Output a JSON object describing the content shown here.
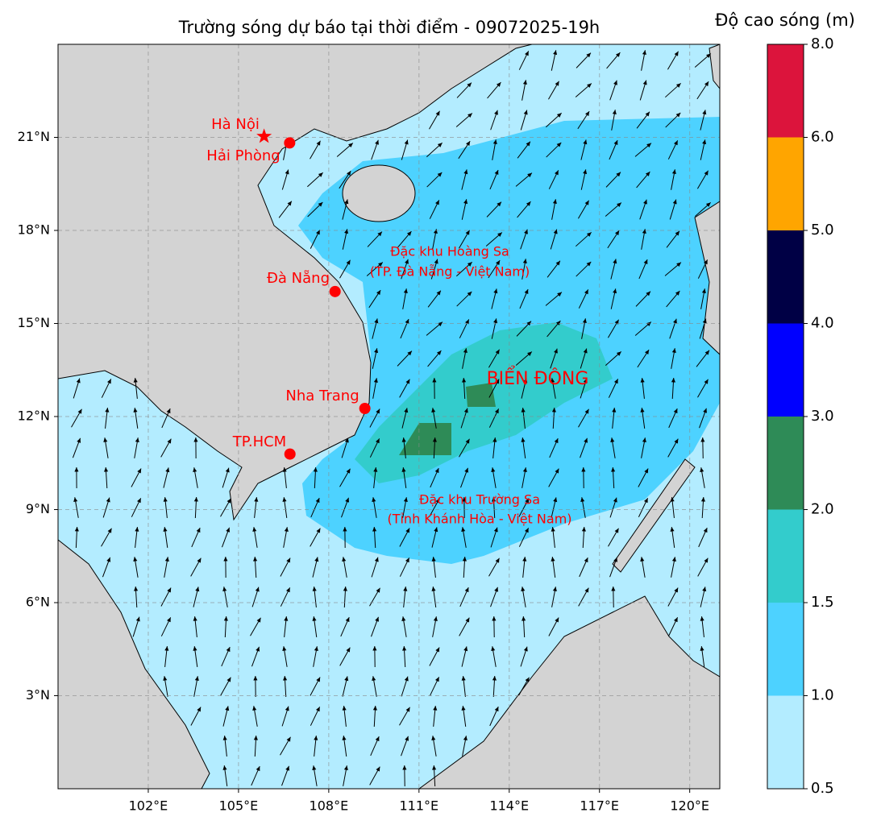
{
  "title": "Trường sóng dự báo tại thời điểm - 09072025-19h",
  "map": {
    "xlim": [
      99,
      121
    ],
    "ylim": [
      0,
      24
    ],
    "xticks": [
      {
        "value": 102,
        "label": "102°E"
      },
      {
        "value": 105,
        "label": "105°E"
      },
      {
        "value": 108,
        "label": "108°E"
      },
      {
        "value": 111,
        "label": "111°E"
      },
      {
        "value": 114,
        "label": "114°E"
      },
      {
        "value": 117,
        "label": "117°E"
      },
      {
        "value": 120,
        "label": "120°E"
      }
    ],
    "yticks": [
      {
        "value": 3,
        "label": "3°N"
      },
      {
        "value": 6,
        "label": "6°N"
      },
      {
        "value": 9,
        "label": "9°N"
      },
      {
        "value": 12,
        "label": "12°N"
      },
      {
        "value": 15,
        "label": "15°N"
      },
      {
        "value": 18,
        "label": "18°N"
      },
      {
        "value": 21,
        "label": "21°N"
      }
    ],
    "grid": true
  },
  "cities": [
    {
      "name": "Hà Nội",
      "lon": 105.85,
      "lat": 21.03,
      "marker": "star"
    },
    {
      "name": "Hải Phòng",
      "lon": 106.7,
      "lat": 20.82,
      "marker": "circle"
    },
    {
      "name": "Đà Nẵng",
      "lon": 108.21,
      "lat": 16.03,
      "marker": "circle"
    },
    {
      "name": "Nha Trang",
      "lon": 109.2,
      "lat": 12.26,
      "marker": "circle"
    },
    {
      "name": "TP.HCM",
      "lon": 106.71,
      "lat": 10.79,
      "marker": "circle"
    }
  ],
  "annotations": [
    "Đặc khu Hoàng Sa",
    "(TP. Đà Nẵng - Việt Nam)",
    "BIỂN ĐÔNG",
    "Đặc khu Trường Sa",
    "(Tỉnh Khánh Hòa - Việt Nam)"
  ],
  "colorbar": {
    "label": "Độ cao sóng (m)",
    "ticks": [
      0.5,
      {
        "value": 1,
        "label": "1.0"
      },
      1.5,
      {
        "value": 2,
        "label": "2.0"
      },
      {
        "value": 3,
        "label": "3.0"
      },
      {
        "value": 4,
        "label": "4.0"
      },
      {
        "value": 5,
        "label": "5.0"
      },
      {
        "value": 6,
        "label": "6.0"
      },
      {
        "value": 8,
        "label": "8.0"
      }
    ],
    "colors": [
      "#b3ecff",
      "#4dd2ff",
      "#33cccc",
      "#2e8b57",
      "#0000ff",
      "#000045",
      "#ffa500",
      "#dc143c"
    ]
  }
}
